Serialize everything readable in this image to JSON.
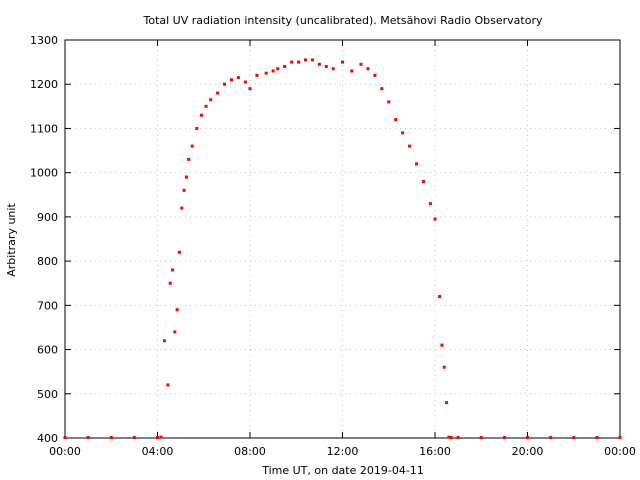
{
  "chart_data": {
    "type": "scatter",
    "title": "Total UV radiation intensity (uncalibrated). Metsähovi Radio Observatory",
    "xlabel": "Time UT, on date 2019-04-11",
    "ylabel": "Arbitrary unit",
    "xlim": [
      0,
      24
    ],
    "ylim": [
      400,
      1300
    ],
    "xticks": [
      {
        "value": 0,
        "label": "00:00"
      },
      {
        "value": 4,
        "label": "04:00"
      },
      {
        "value": 8,
        "label": "08:00"
      },
      {
        "value": 12,
        "label": "12:00"
      },
      {
        "value": 16,
        "label": "16:00"
      },
      {
        "value": 20,
        "label": "20:00"
      },
      {
        "value": 24,
        "label": "00:00"
      }
    ],
    "yticks": [
      {
        "value": 400,
        "label": "400"
      },
      {
        "value": 500,
        "label": "500"
      },
      {
        "value": 600,
        "label": "600"
      },
      {
        "value": 700,
        "label": "700"
      },
      {
        "value": 800,
        "label": "800"
      },
      {
        "value": 900,
        "label": "900"
      },
      {
        "value": 1000,
        "label": "1000"
      },
      {
        "value": 1100,
        "label": "1100"
      },
      {
        "value": 1200,
        "label": "1200"
      },
      {
        "value": 1300,
        "label": "1300"
      }
    ],
    "grid": true,
    "marker_color": "#ff0000",
    "series": [
      {
        "x": [
          0,
          1,
          2,
          3,
          4,
          4.15,
          4.3,
          4.45,
          4.55,
          4.65,
          4.75,
          4.85,
          4.95,
          5.05,
          5.15,
          5.25,
          5.35,
          5.5,
          5.7,
          5.9,
          6.1,
          6.3,
          6.6,
          6.9,
          7.2,
          7.5,
          7.8,
          8.0,
          8.3,
          8.7,
          9.0,
          9.2,
          9.5,
          9.8,
          10.1,
          10.4,
          10.7,
          11.0,
          11.3,
          11.6,
          12.0,
          12.4,
          12.8,
          13.1,
          13.4,
          13.7,
          14.0,
          14.3,
          14.6,
          14.9,
          15.2,
          15.5,
          15.8,
          16.0,
          16.2,
          16.3,
          16.4,
          16.5,
          16.6,
          16.7,
          17,
          18,
          19,
          20,
          21,
          22,
          23,
          24
        ],
        "y": [
          401,
          401,
          401,
          401,
          401,
          402,
          620,
          520,
          750,
          780,
          640,
          690,
          820,
          920,
          960,
          990,
          1030,
          1060,
          1100,
          1130,
          1150,
          1165,
          1180,
          1200,
          1210,
          1215,
          1205,
          1190,
          1220,
          1225,
          1230,
          1235,
          1240,
          1250,
          1250,
          1255,
          1255,
          1245,
          1240,
          1235,
          1250,
          1230,
          1245,
          1235,
          1220,
          1190,
          1160,
          1120,
          1090,
          1060,
          1020,
          980,
          930,
          895,
          720,
          610,
          560,
          480,
          402,
          401,
          401,
          401,
          401,
          401,
          401,
          401,
          401,
          401
        ]
      }
    ]
  }
}
